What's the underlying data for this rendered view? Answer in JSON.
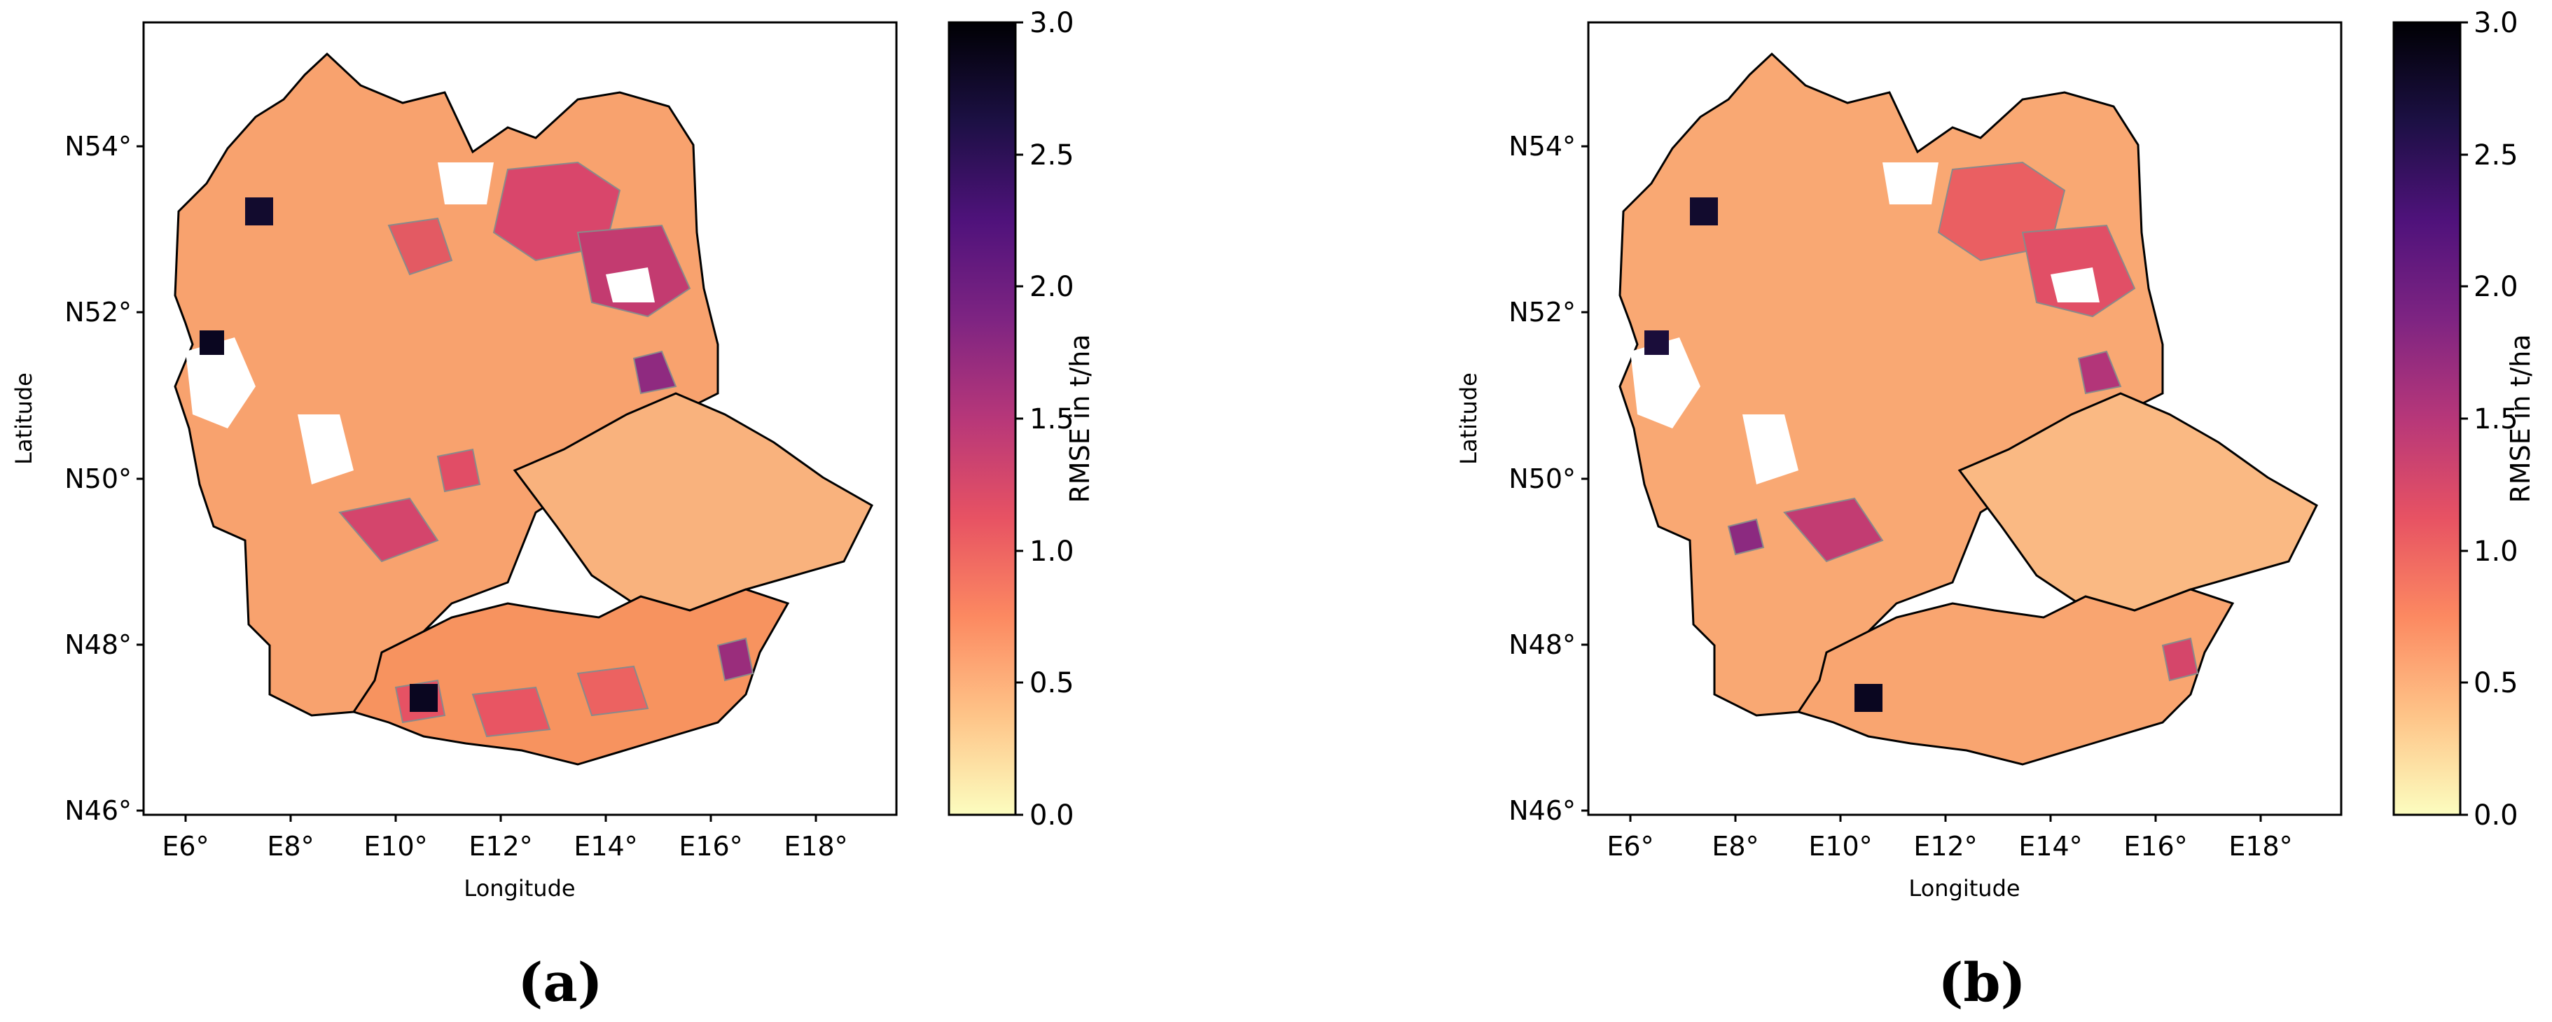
{
  "panels": [
    {
      "id": "a",
      "caption": "(a)",
      "xlabel": "Longitude",
      "ylabel": "Latitude",
      "lon_ticks": [
        "E6°",
        "E8°",
        "E10°",
        "E12°",
        "E14°",
        "E16°",
        "E18°"
      ],
      "lat_ticks": [
        "N54°",
        "N52°",
        "N50°",
        "N48°",
        "N46°"
      ],
      "lon_range": [
        5.2,
        19.6
      ],
      "lat_range": [
        45.8,
        55.5
      ],
      "colorbar_label": "RMSE in t/ha",
      "colorbar_ticks": [
        "0.0",
        "0.5",
        "1.0",
        "1.5",
        "2.0",
        "2.5",
        "3.0"
      ]
    },
    {
      "id": "b",
      "caption": "(b)",
      "xlabel": "Longitude",
      "ylabel": "Latitude",
      "lon_ticks": [
        "E6°",
        "E8°",
        "E10°",
        "E12°",
        "E14°",
        "E16°",
        "E18°"
      ],
      "lat_ticks": [
        "N54°",
        "N52°",
        "N50°",
        "N48°",
        "N46°"
      ],
      "lon_range": [
        5.2,
        19.6
      ],
      "lat_range": [
        45.8,
        55.5
      ],
      "colorbar_label": "RMSE in t/ha",
      "colorbar_ticks": [
        "0.0",
        "0.5",
        "1.0",
        "1.5",
        "2.0",
        "2.5",
        "3.0"
      ]
    }
  ],
  "colormap": {
    "name": "magma_r",
    "range": [
      0,
      3
    ],
    "stops": [
      "#fcfdbf",
      "#fec488",
      "#fc8961",
      "#e75263",
      "#b73779",
      "#7e2482",
      "#4f127b",
      "#1c1044",
      "#000004"
    ]
  },
  "colors": {
    "border": "#000000",
    "district_edge": "#8a8a8a",
    "background": "#ffffff"
  }
}
